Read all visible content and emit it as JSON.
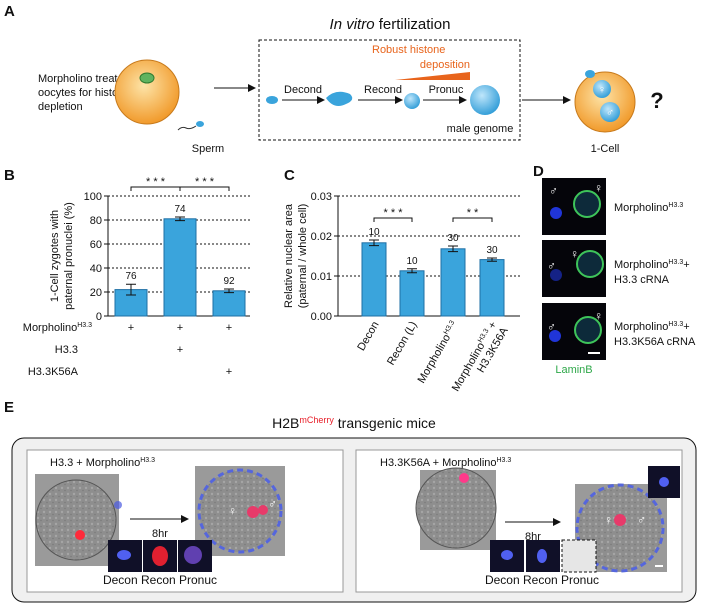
{
  "panel_a": {
    "letter": "A",
    "title_italic": "In vitro",
    "title_rest": " fertilization",
    "oocyte_text": [
      "Morpholino treated MII",
      "oocytes for histone",
      "depletion"
    ],
    "sperm": "Sperm",
    "steps": [
      "Decond",
      "Recond",
      "Pronuc"
    ],
    "deposition": [
      "Robust histone",
      "deposition"
    ],
    "male_genome": "male genome",
    "result": "1-Cell",
    "question": "?"
  },
  "symbols": {
    "male": "♂",
    "female": "♀"
  },
  "chart_data": [
    {
      "type": "bar",
      "letter": "B",
      "ylabel": [
        "1-Cell zygotes with",
        "paternal pronuclei (%)"
      ],
      "values": [
        22,
        81,
        21
      ],
      "errors": [
        4.5,
        1.5,
        1.5
      ],
      "n_labels": [
        "76",
        "74",
        "92"
      ],
      "color": "#3aa4dc",
      "ylim": [
        0,
        100
      ],
      "yticks": [
        0,
        20,
        40,
        60,
        80,
        100
      ],
      "grid": true,
      "significance": [
        "* * *",
        "* * *"
      ],
      "conditions": [
        {
          "label": "Morpholino",
          "sup": "H3.3",
          "marks": [
            "+",
            "+",
            "+"
          ]
        },
        {
          "label": "H3.3",
          "marks": [
            null,
            "+",
            null
          ]
        },
        {
          "label": "H3.3K56A",
          "marks": [
            null,
            null,
            "+"
          ]
        }
      ]
    },
    {
      "type": "bar",
      "letter": "C",
      "ylabel": [
        "Relative nuclear area",
        "(paternal / whole cell)"
      ],
      "categories": [
        "Decon",
        "Recon (L)",
        "Morpholino",
        "Morpholino"
      ],
      "category_sup": [
        null,
        null,
        "H3.3",
        "H3.3"
      ],
      "category_tail": [
        null,
        null,
        null,
        " +"
      ],
      "category_line2": [
        null,
        null,
        null,
        "H3.3K56A"
      ],
      "values": [
        0.0183,
        0.0113,
        0.0168,
        0.0141
      ],
      "errors": [
        0.0007,
        0.0005,
        0.0007,
        0.0004
      ],
      "n_labels": [
        "10",
        "10",
        "30",
        "30"
      ],
      "color": "#3aa4dc",
      "ylim": [
        0,
        0.03
      ],
      "yticks": [
        {
          "value": 0,
          "label": "0.00"
        },
        {
          "value": 0.01,
          "label": "0.01"
        },
        {
          "value": 0.02,
          "label": "0.02"
        },
        {
          "value": 0.03,
          "label": "0.03"
        }
      ],
      "grid": true,
      "significance": [
        "* * *",
        "* *"
      ]
    }
  ],
  "panel_d": {
    "letter": "D",
    "labels": [
      {
        "main": "Morpholino",
        "sup": "H3.3"
      },
      {
        "main": "Morpholino",
        "sup": "H3.3",
        "tail": "+",
        "line2": "H3.3 cRNA"
      },
      {
        "main": "Morpholino",
        "sup": "H3.3",
        "tail": "+",
        "line2": "H3.3K56A cRNA"
      }
    ],
    "stain": "LaminB"
  },
  "panel_e": {
    "letter": "E",
    "title_main": "H2B",
    "title_sup": "mCherry",
    "title_rest": " transgenic mice",
    "left": {
      "label": "H3.3 + Morpholino",
      "sup": "H3.3",
      "time": "8hr",
      "insets": "Decon Recon Pronuc"
    },
    "right": {
      "label": "H3.3K56A + Morpholino",
      "sup": "H3.3",
      "time": "8hr",
      "insets": "Decon Recon Pronuc"
    }
  }
}
